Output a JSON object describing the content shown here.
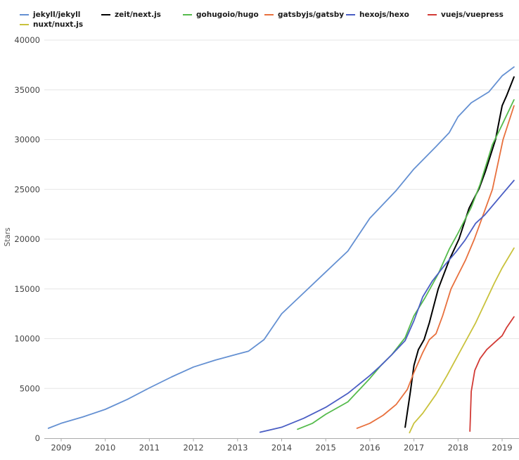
{
  "chart_data": {
    "type": "line",
    "title": "",
    "xlabel": "",
    "ylabel": "Stars",
    "xlim": [
      2008.55,
      2019.45
    ],
    "ylim": [
      0,
      40000
    ],
    "x_ticks": [
      2009,
      2010,
      2011,
      2012,
      2013,
      2014,
      2015,
      2016,
      2017,
      2018,
      2019
    ],
    "y_ticks": [
      0,
      5000,
      10000,
      15000,
      20000,
      25000,
      30000,
      35000,
      40000
    ],
    "grid": "horizontal",
    "legend_position": "top",
    "colors": {
      "grid": "#e6e6e6",
      "axis": "#aaaaaa",
      "tick_label": "#444444",
      "axis_title": "#555555"
    },
    "series": [
      {
        "name": "jekyll/jekyll",
        "color": "#6490d2",
        "points": [
          [
            2008.71,
            1000
          ],
          [
            2009,
            1500
          ],
          [
            2009.5,
            2150
          ],
          [
            2010,
            2900
          ],
          [
            2010.5,
            3900
          ],
          [
            2011,
            5050
          ],
          [
            2011.5,
            6150
          ],
          [
            2012,
            7150
          ],
          [
            2012.5,
            7850
          ],
          [
            2013,
            8450
          ],
          [
            2013.25,
            8750
          ],
          [
            2013.6,
            9900
          ],
          [
            2014,
            12500
          ],
          [
            2014.5,
            14600
          ],
          [
            2015,
            16700
          ],
          [
            2015.5,
            18800
          ],
          [
            2016,
            22100
          ],
          [
            2016.3,
            23500
          ],
          [
            2016.6,
            24900
          ],
          [
            2017,
            27050
          ],
          [
            2017.5,
            29300
          ],
          [
            2017.8,
            30700
          ],
          [
            2018,
            32300
          ],
          [
            2018.3,
            33700
          ],
          [
            2018.7,
            34800
          ],
          [
            2019,
            36400
          ],
          [
            2019.27,
            37300
          ]
        ]
      },
      {
        "name": "zeit/next.js",
        "color": "#000000",
        "points": [
          [
            2016.8,
            1100
          ],
          [
            2016.85,
            2600
          ],
          [
            2016.92,
            4700
          ],
          [
            2017,
            7300
          ],
          [
            2017.1,
            8900
          ],
          [
            2017.23,
            9900
          ],
          [
            2017.35,
            11600
          ],
          [
            2017.55,
            15000
          ],
          [
            2017.8,
            17900
          ],
          [
            2018.02,
            20000
          ],
          [
            2018.25,
            23100
          ],
          [
            2018.48,
            25100
          ],
          [
            2018.62,
            26800
          ],
          [
            2018.85,
            30000
          ],
          [
            2019,
            33400
          ],
          [
            2019.1,
            34400
          ],
          [
            2019.27,
            36300
          ]
        ]
      },
      {
        "name": "gohugoio/hugo",
        "color": "#55bb4c",
        "points": [
          [
            2014.36,
            900
          ],
          [
            2014.7,
            1500
          ],
          [
            2015,
            2400
          ],
          [
            2015.5,
            3650
          ],
          [
            2016,
            6000
          ],
          [
            2016.25,
            7300
          ],
          [
            2016.5,
            8400
          ],
          [
            2016.8,
            10100
          ],
          [
            2017,
            12300
          ],
          [
            2017.25,
            14100
          ],
          [
            2017.55,
            16500
          ],
          [
            2017.8,
            19000
          ],
          [
            2018,
            20600
          ],
          [
            2018.3,
            23200
          ],
          [
            2018.5,
            25500
          ],
          [
            2018.78,
            29500
          ],
          [
            2019,
            31500
          ],
          [
            2019.27,
            34000
          ]
        ]
      },
      {
        "name": "gatsbyjs/gatsby",
        "color": "#e8703d",
        "points": [
          [
            2015.71,
            1000
          ],
          [
            2016,
            1500
          ],
          [
            2016.3,
            2300
          ],
          [
            2016.6,
            3400
          ],
          [
            2016.85,
            4900
          ],
          [
            2017,
            6600
          ],
          [
            2017.2,
            8600
          ],
          [
            2017.35,
            9900
          ],
          [
            2017.5,
            10500
          ],
          [
            2017.65,
            12300
          ],
          [
            2017.84,
            15000
          ],
          [
            2018,
            16400
          ],
          [
            2018.17,
            17900
          ],
          [
            2018.37,
            20000
          ],
          [
            2018.6,
            22800
          ],
          [
            2018.78,
            25000
          ],
          [
            2019.02,
            30000
          ],
          [
            2019.27,
            33400
          ]
        ]
      },
      {
        "name": "hexojs/hexo",
        "color": "#4a5ec4",
        "points": [
          [
            2013.51,
            600
          ],
          [
            2014,
            1100
          ],
          [
            2014.5,
            2000
          ],
          [
            2015,
            3100
          ],
          [
            2015.5,
            4500
          ],
          [
            2016,
            6300
          ],
          [
            2016.25,
            7300
          ],
          [
            2016.5,
            8400
          ],
          [
            2016.8,
            9800
          ],
          [
            2017,
            11800
          ],
          [
            2017.2,
            14200
          ],
          [
            2017.42,
            15800
          ],
          [
            2017.7,
            17400
          ],
          [
            2017.95,
            18700
          ],
          [
            2018.16,
            19900
          ],
          [
            2018.4,
            21600
          ],
          [
            2018.6,
            22400
          ],
          [
            2019,
            24500
          ],
          [
            2019.27,
            25900
          ]
        ]
      },
      {
        "name": "vuejs/vuepress",
        "color": "#d23a35",
        "points": [
          [
            2018.27,
            700
          ],
          [
            2018.3,
            4700
          ],
          [
            2018.38,
            6800
          ],
          [
            2018.5,
            8000
          ],
          [
            2018.65,
            8900
          ],
          [
            2018.85,
            9700
          ],
          [
            2019,
            10300
          ],
          [
            2019.1,
            11100
          ],
          [
            2019.27,
            12200
          ]
        ]
      },
      {
        "name": "nuxt/nuxt.js",
        "color": "#c9c23c",
        "points": [
          [
            2016.9,
            550
          ],
          [
            2017,
            1500
          ],
          [
            2017.2,
            2500
          ],
          [
            2017.5,
            4400
          ],
          [
            2017.75,
            6300
          ],
          [
            2018,
            8340
          ],
          [
            2018.4,
            11600
          ],
          [
            2018.82,
            15550
          ],
          [
            2019,
            17100
          ],
          [
            2019.27,
            19100
          ]
        ]
      }
    ]
  }
}
